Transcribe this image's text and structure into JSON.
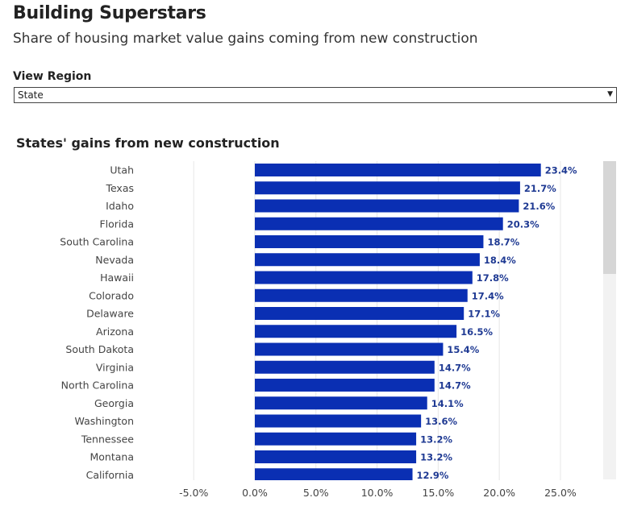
{
  "header": {
    "title": "Building Superstars",
    "subtitle": "Share of housing market value gains coming from new construction"
  },
  "filter": {
    "label": "View Region",
    "selected": "State"
  },
  "colors": {
    "bar": "#0a2fb3",
    "label": "#1f3a93",
    "grid": "#e6e6e6"
  },
  "chart_data": {
    "type": "bar",
    "orientation": "horizontal",
    "title": "States' gains from new construction",
    "categories": [
      "Utah",
      "Texas",
      "Idaho",
      "Florida",
      "South Carolina",
      "Nevada",
      "Hawaii",
      "Colorado",
      "Delaware",
      "Arizona",
      "South Dakota",
      "Virginia",
      "North Carolina",
      "Georgia",
      "Washington",
      "Tennessee",
      "Montana",
      "California"
    ],
    "values": [
      23.4,
      21.7,
      21.6,
      20.3,
      18.7,
      18.4,
      17.8,
      17.4,
      17.1,
      16.5,
      15.4,
      14.7,
      14.7,
      14.1,
      13.6,
      13.2,
      13.2,
      12.9
    ],
    "data_labels": [
      "23.4%",
      "21.7%",
      "21.6%",
      "20.3%",
      "18.7%",
      "18.4%",
      "17.8%",
      "17.4%",
      "17.1%",
      "16.5%",
      "15.4%",
      "14.7%",
      "14.7%",
      "14.1%",
      "13.6%",
      "13.2%",
      "13.2%",
      "12.9%"
    ],
    "x_ticks": [
      -5,
      0,
      5,
      10,
      15,
      20,
      25
    ],
    "x_tick_labels": [
      "-5.0%",
      "0.0%",
      "5.0%",
      "10.0%",
      "15.0%",
      "20.0%",
      "25.0%"
    ],
    "xlim": [
      -9.5,
      28.5
    ],
    "grid": "vertical"
  }
}
